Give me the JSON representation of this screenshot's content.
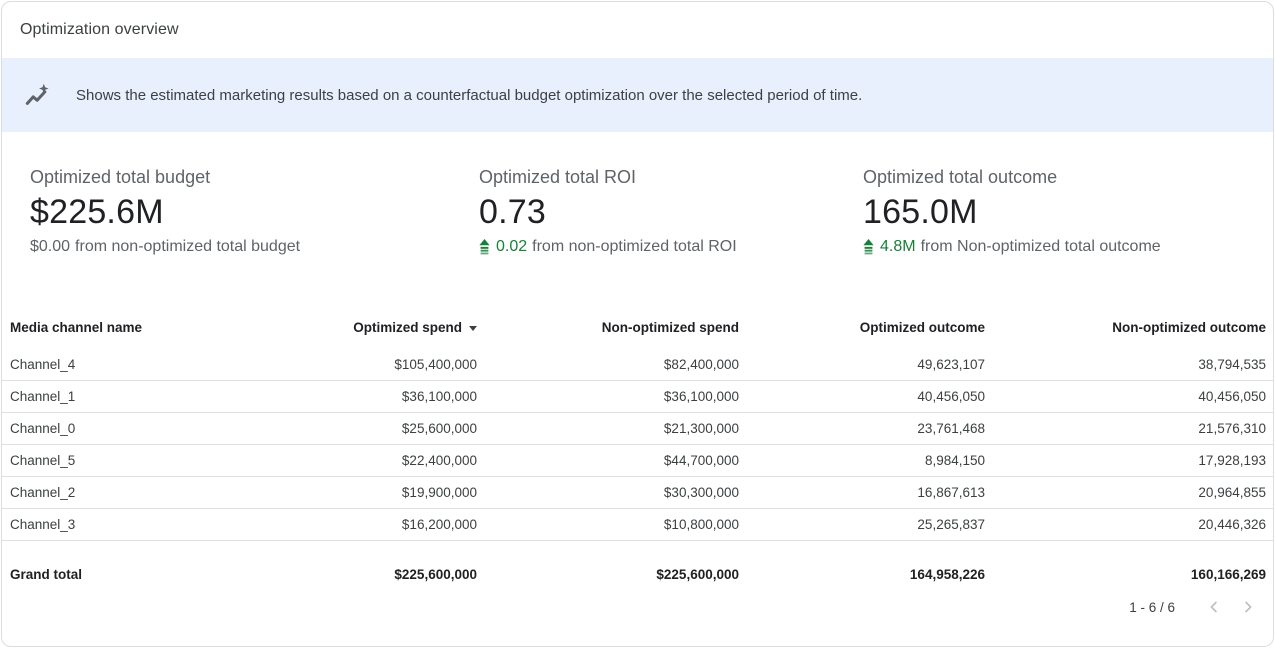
{
  "header": {
    "title": "Optimization overview"
  },
  "banner": {
    "icon": "insights-icon",
    "text": "Shows the estimated marketing results based on a counterfactual budget optimization over the selected period of time."
  },
  "kpis": [
    {
      "label": "Optimized total budget",
      "value": "$225.6M",
      "delta": {
        "change": "$0.00",
        "suffix": "from non-optimized total budget",
        "positive": false
      }
    },
    {
      "label": "Optimized total ROI",
      "value": "0.73",
      "delta": {
        "change": "0.02",
        "suffix": "from non-optimized total ROI",
        "positive": true,
        "icon": "stat-up-icon"
      }
    },
    {
      "label": "Optimized total outcome",
      "value": "165.0M",
      "delta": {
        "change": "4.8M",
        "suffix": "from Non-optimized total outcome",
        "positive": true,
        "icon": "stat-up-icon"
      }
    }
  ],
  "table": {
    "columns": [
      "Media channel name",
      "Optimized spend",
      "Non-optimized spend",
      "Optimized outcome",
      "Non-optimized outcome"
    ],
    "sort": {
      "column": "Optimized spend",
      "direction": "desc"
    },
    "rows": [
      [
        "Channel_4",
        "$105,400,000",
        "$82,400,000",
        "49,623,107",
        "38,794,535"
      ],
      [
        "Channel_1",
        "$36,100,000",
        "$36,100,000",
        "40,456,050",
        "40,456,050"
      ],
      [
        "Channel_0",
        "$25,600,000",
        "$21,300,000",
        "23,761,468",
        "21,576,310"
      ],
      [
        "Channel_5",
        "$22,400,000",
        "$44,700,000",
        "8,984,150",
        "17,928,193"
      ],
      [
        "Channel_2",
        "$19,900,000",
        "$30,300,000",
        "16,867,613",
        "20,964,855"
      ],
      [
        "Channel_3",
        "$16,200,000",
        "$10,800,000",
        "25,265,837",
        "20,446,326"
      ]
    ],
    "grand_total": {
      "label": "Grand total",
      "values": [
        "$225,600,000",
        "$225,600,000",
        "164,958,226",
        "160,166,269"
      ]
    }
  },
  "pagination": {
    "range": "1 - 6 / 6"
  },
  "colors": {
    "banner_bg": "#e8f0fe",
    "positive_green": "#188038",
    "card_border": "#dadce0",
    "text_primary": "#202124",
    "text_secondary": "#5f6368",
    "row_divider": "#e0e0e0",
    "chevron_disabled": "#bdc1c6"
  }
}
